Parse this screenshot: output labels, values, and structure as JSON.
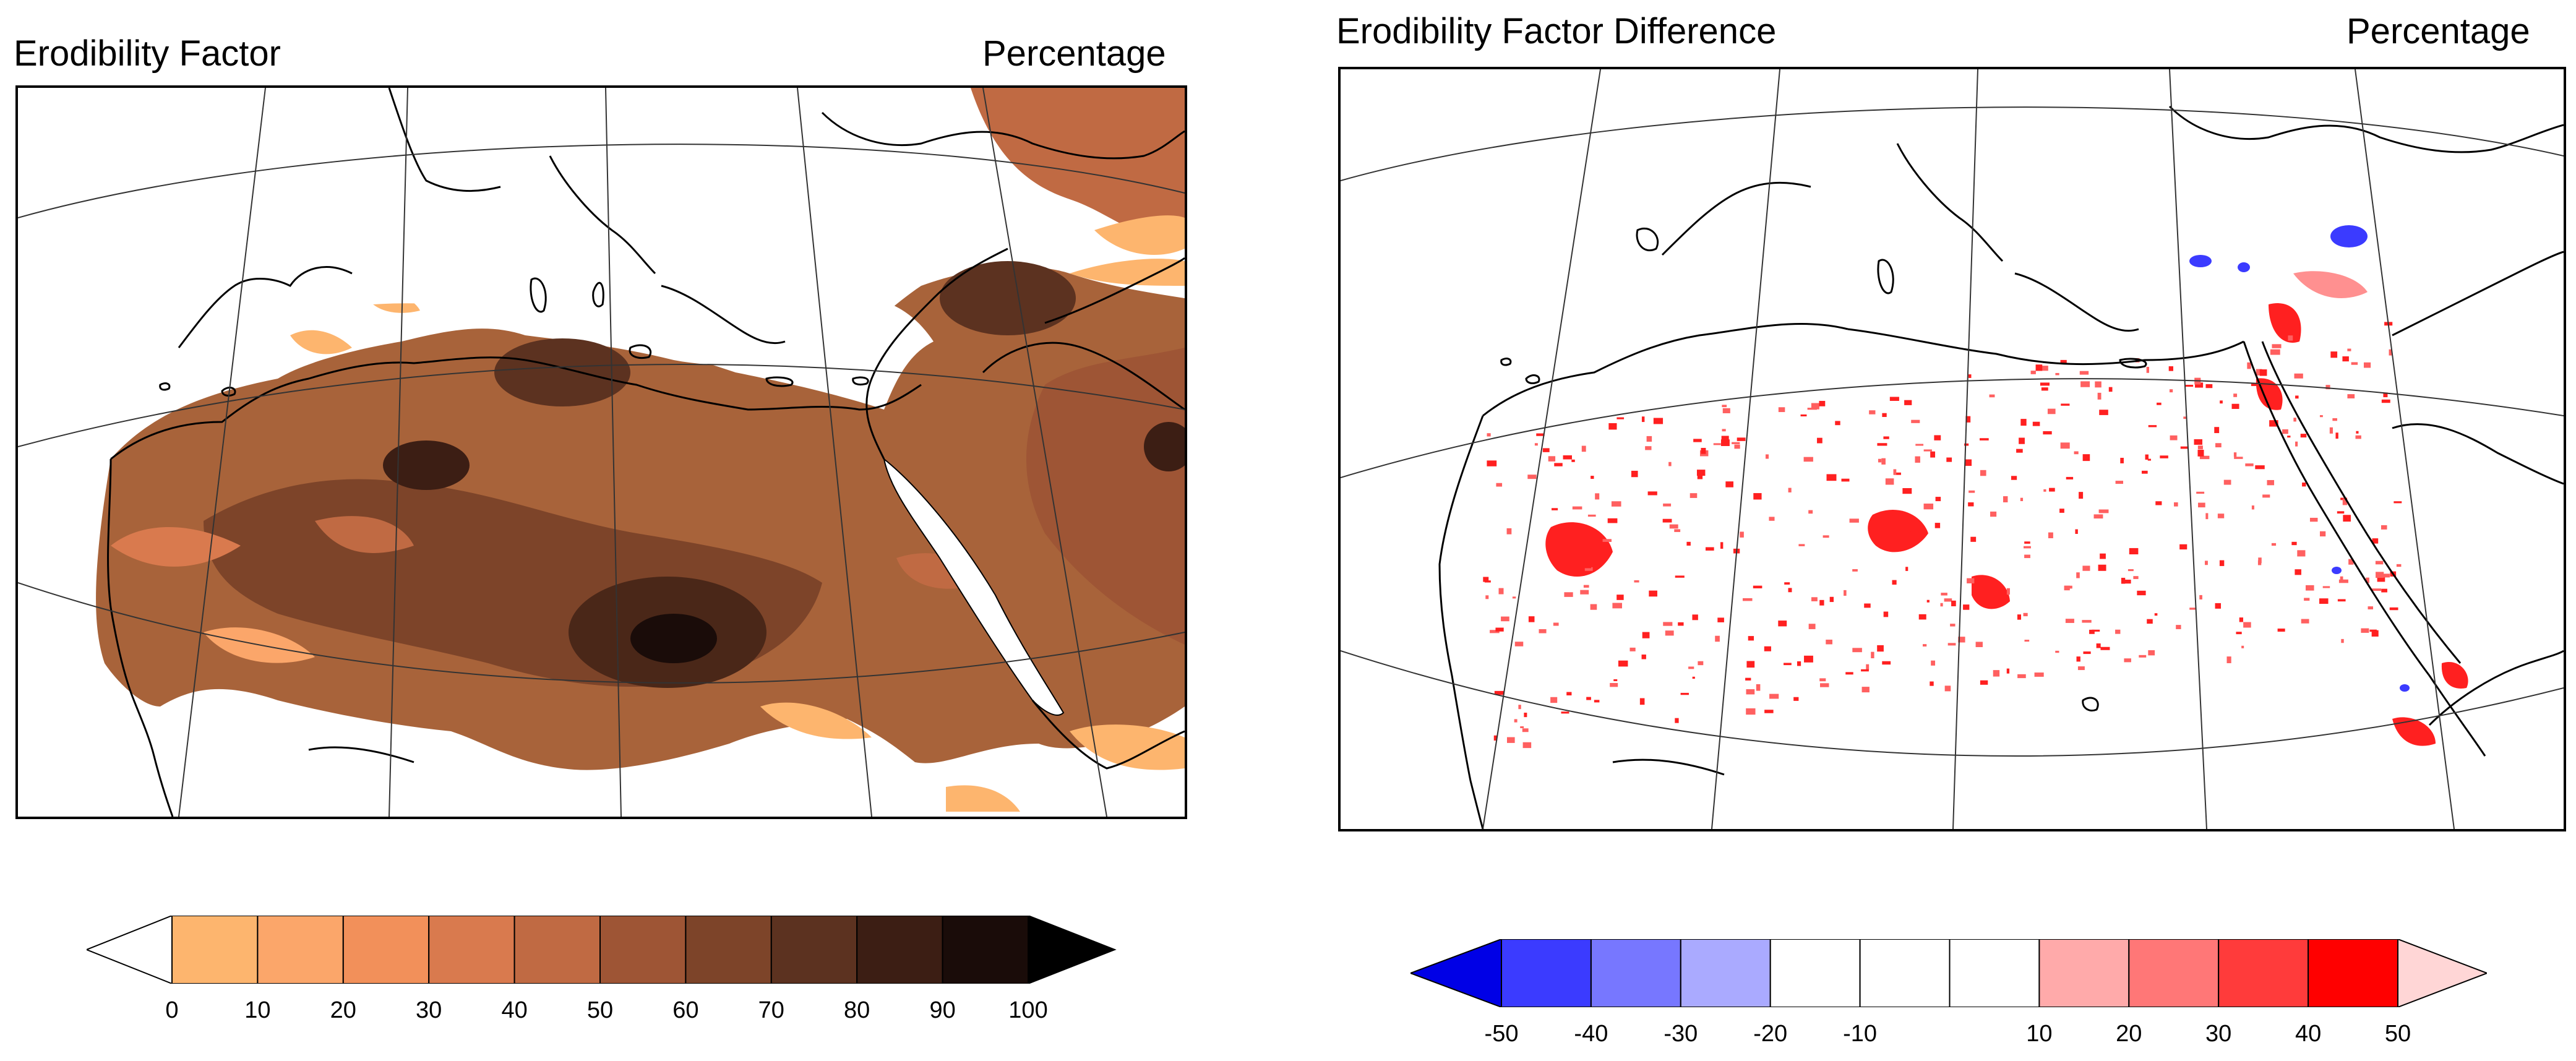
{
  "left_panel": {
    "title": "Erodibility Factor",
    "units": "Percentage",
    "colorbar": {
      "labels": [
        "0",
        "10",
        "20",
        "30",
        "40",
        "50",
        "60",
        "70",
        "80",
        "90",
        "100"
      ],
      "colors": [
        "#ffffff",
        "#fdb56e",
        "#fba66a",
        "#f2905a",
        "#d97a4e",
        "#c06a43",
        "#9e5535",
        "#7d4429",
        "#5c3220",
        "#3c1e14",
        "#1a0c09",
        "#000000"
      ]
    }
  },
  "right_panel": {
    "title": "Erodibility Factor Difference",
    "units": "Percentage",
    "colorbar": {
      "labels": [
        "-50",
        "-40",
        "-30",
        "-20",
        "-10",
        "10",
        "20",
        "30",
        "40",
        "50"
      ],
      "colors": [
        "#0000e6",
        "#3b3bff",
        "#7777ff",
        "#aaaaff",
        "#ffffff",
        "#ffffff",
        "#ffffff",
        "#ffaaaa",
        "#ff7777",
        "#ff3b3b",
        "#ff0000",
        "#ffd6d6"
      ]
    }
  }
}
